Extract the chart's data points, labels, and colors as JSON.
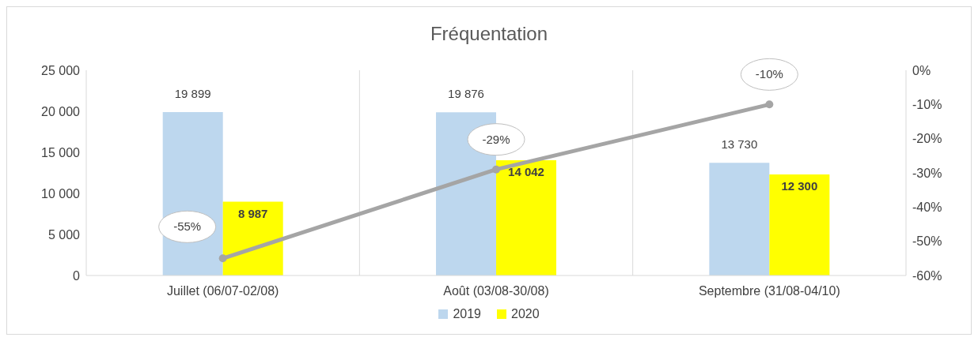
{
  "chart_data": {
    "type": "bar",
    "title": "Fréquentation",
    "categories": [
      "Juillet (06/07-02/08)",
      "Août (03/08-30/08)",
      "Septembre (31/08-04/10)"
    ],
    "series": [
      {
        "name": "2019",
        "color": "#bdd7ee",
        "values": [
          19899,
          19876,
          13730
        ],
        "value_labels": [
          "19 899",
          "19 876",
          "13 730"
        ]
      },
      {
        "name": "2020",
        "color": "#ffff00",
        "values": [
          8987,
          14042,
          12300
        ],
        "value_labels": [
          "8 987",
          "14 042",
          "12 300"
        ]
      },
      {
        "type": "line",
        "axis": "y2",
        "color": "#a5a5a5",
        "values": [
          -55,
          -29,
          -10
        ],
        "value_labels": [
          "-55%",
          "-29%",
          "-10%"
        ],
        "marker": "circle"
      }
    ],
    "ylim": [
      0,
      25000
    ],
    "yticks": [
      0,
      {
        "value": 5000,
        "label": "5 000"
      },
      {
        "value": 10000,
        "label": "10 000"
      },
      {
        "value": 15000,
        "label": "15 000"
      },
      {
        "value": 20000,
        "label": "20 000"
      },
      {
        "value": 25000,
        "label": "25 000"
      }
    ],
    "y2lim": [
      -60,
      0
    ],
    "y2ticks": [
      {
        "value": -60,
        "label": "-60%"
      },
      {
        "value": -50,
        "label": "-50%"
      },
      {
        "value": -40,
        "label": "-40%"
      },
      {
        "value": -30,
        "label": "-30%"
      },
      {
        "value": -20,
        "label": "-20%"
      },
      {
        "value": -10,
        "label": "-10%"
      },
      {
        "value": 0,
        "label": "0%"
      }
    ],
    "grid": "x",
    "legend": "bottom"
  }
}
